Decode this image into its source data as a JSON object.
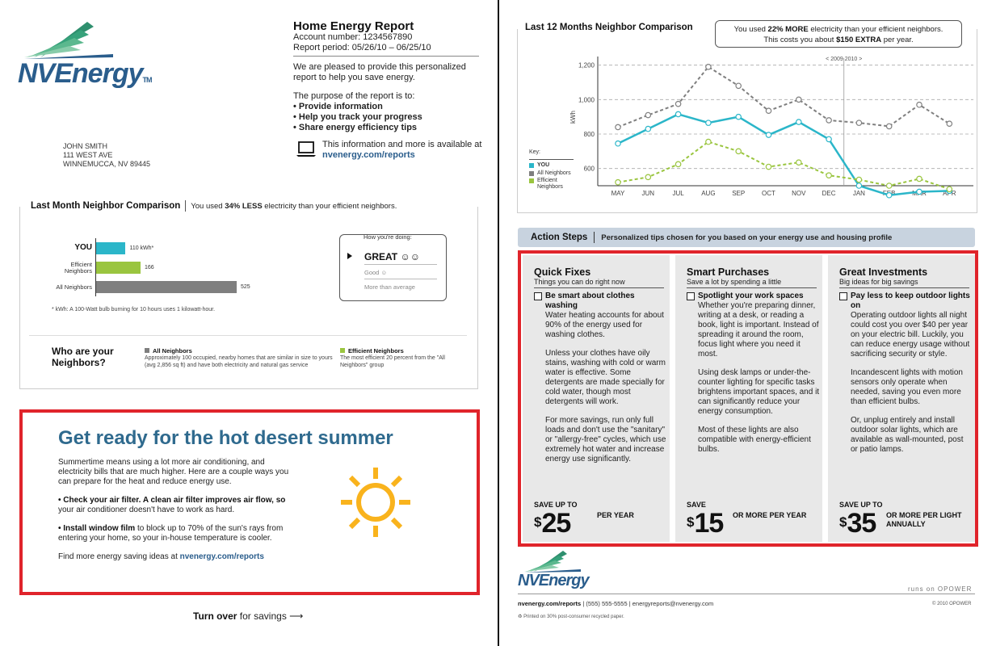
{
  "brand": {
    "logo_text": "NVEnergy",
    "tm": "TM",
    "colors": {
      "teal": "#2bb6c9",
      "gray": "#7f7f7f",
      "green": "#9ac53f",
      "blue": "#2f6a8e",
      "red": "#e0242b",
      "sun": "#f9b31d"
    }
  },
  "report": {
    "title": "Home Energy Report",
    "account": "Account number: 1234567890",
    "period": "Report period: 05/26/10 – 06/25/10",
    "intro_p1": "We are pleased to provide this personalized report to help you save energy.",
    "intro_p2": "The purpose of the report is to:",
    "purposes": [
      "Provide information",
      "Help you track your progress",
      "Share energy efficiency tips"
    ],
    "info_text": "This information and more is available at",
    "info_link": "nvenergy.com/reports",
    "laptop_icon": "laptop-icon"
  },
  "address": {
    "name": "JOHN SMITH",
    "street": "111 WEST AVE",
    "city": "WINNEMUCCA, NV 89445"
  },
  "last_month": {
    "title": "Last Month Neighbor Comparison",
    "subtitle_pre": "You used ",
    "subtitle_bold": "34% LESS",
    "subtitle_post": " electricity than your efficient neighbors.",
    "rows": [
      {
        "label": "YOU",
        "value_label": "110 kWh*"
      },
      {
        "label": "Efficient Neighbors",
        "value_label": "166"
      },
      {
        "label": "All Neighbors",
        "value_label": "525"
      }
    ],
    "footnote": "* kWh: A 100-Watt bulb burning for 10 hours uses 1 kilowatt-hour.",
    "doing_head": "How you're doing:",
    "great": "GREAT",
    "good": "Good",
    "more": "More than average"
  },
  "chart_data": [
    {
      "type": "bar",
      "categories": [
        "YOU",
        "Efficient Neighbors",
        "All Neighbors"
      ],
      "values": [
        110,
        166,
        525
      ],
      "colors": [
        "#2bb6c9",
        "#9ac53f",
        "#7f7f7f"
      ]
    },
    {
      "type": "line",
      "categories": [
        "MAY",
        "JUN",
        "JUL",
        "AUG",
        "SEP",
        "OCT",
        "NOV",
        "DEC",
        "JAN",
        "FEB",
        "MAR",
        "APR"
      ],
      "year_divider": "< 2009 2010 >",
      "ylabel": "kWh",
      "yticks": [
        "600",
        "800",
        "1,000",
        "1,200"
      ],
      "ylim": [
        500,
        1250
      ],
      "series": [
        {
          "name": "All Neighbors",
          "color": "#7f7f7f",
          "style": "dashed",
          "values": [
            840,
            910,
            975,
            1190,
            1080,
            935,
            1000,
            880,
            865,
            845,
            970,
            860
          ]
        },
        {
          "name": "YOU",
          "color": "#2bb6c9",
          "style": "solid",
          "values": [
            745,
            830,
            915,
            865,
            900,
            795,
            870,
            770,
            500,
            445,
            465,
            470
          ]
        },
        {
          "name": "Efficient Neighbors",
          "color": "#9ac53f",
          "style": "dashed",
          "values": [
            520,
            550,
            625,
            755,
            700,
            610,
            635,
            560,
            535,
            500,
            540,
            480
          ]
        }
      ]
    }
  ],
  "who": {
    "title_line1": "Who are your",
    "title_line2": "Neighbors?",
    "all_head": "All Neighbors",
    "all_text": "Approximately 100 occupied, nearby homes that are similar in size to yours (avg 2,856 sq ft) and have both electricity and natural gas service",
    "eff_head": "Efficient Neighbors",
    "eff_text": "The most efficient 20 percent from the \"All Neighbors\" group"
  },
  "summer": {
    "title": "Get ready for the hot desert summer",
    "p1": "Summertime means using a lot more air conditioning, and electricity bills that are much higher. Here are a couple ways you can prepare for the heat and reduce energy use.",
    "tip1_bold": "• Check your air filter. A clean air filter improves air flow, so",
    "tip1_rest": "your air conditioner doesn't have to work as hard.",
    "tip2_bold": "• Install window film",
    "tip2_rest": " to block up to 70% of the sun's rays from entering your home, so your in-house temperature is cooler.",
    "more_pre": "Find more energy saving ideas at ",
    "more_link": "nvenergy.com/reports",
    "sun_icon": "sun-icon"
  },
  "turnover": {
    "bold": "Turn over",
    "rest": " for savings"
  },
  "comparison12": {
    "title": "Last 12 Months Neighbor Comparison",
    "note_pre": "You used ",
    "note_bold": "22% MORE",
    "note_post": " electricity than your efficient neighbors.",
    "note2_pre": "This costs you about ",
    "note2_bold": "$150 EXTRA",
    "note2_post": " per year.",
    "key_title": "Key:",
    "key_you": "YOU",
    "key_all": "All Neighbors",
    "key_eff": "Efficient Neighbors"
  },
  "action": {
    "title": "Action Steps",
    "subtitle": "Personalized tips chosen for you based on your energy use and housing profile",
    "columns": [
      {
        "title": "Quick Fixes",
        "sub": "Things you can do right now",
        "check": "Be smart about clothes washing",
        "paras": [
          "Water heating accounts for about 90% of the energy used for washing clothes.",
          "Unless your clothes have oily stains, washing with cold or warm water is effective. Some detergents are made specially for cold water, though most detergents will work.",
          "For more savings, run only full loads and don't use the \"sanitary\" or \"allergy-free\" cycles, which use extremely hot water and increase energy use significantly."
        ],
        "save_label": "SAVE UP TO",
        "dollar": "$",
        "amount": "25",
        "per": "PER YEAR"
      },
      {
        "title": "Smart Purchases",
        "sub": "Save a lot by spending a little",
        "check": "Spotlight your work spaces",
        "paras": [
          "Whether you're preparing dinner, writing at a desk, or reading a book, light is important. Instead of spreading it around the room, focus light where you need it most.",
          "Using desk lamps or under-the-counter lighting for specific tasks brightens important spaces, and it can significantly reduce your energy consumption.",
          "Most of these lights are also compatible with energy-efficient bulbs."
        ],
        "save_label": "SAVE",
        "dollar": "$",
        "amount": "15",
        "per": "OR MORE PER YEAR"
      },
      {
        "title": "Great Investments",
        "sub": "Big ideas for big savings",
        "check": "Pay less to keep outdoor lights on",
        "paras": [
          "Operating outdoor lights all night could cost you over $40 per year on your electric bill. Luckily, you can reduce energy usage without sacrificing security or style.",
          "Incandescent lights with motion sensors only operate when needed, saving you even more than efficient bulbs.",
          "Or, unplug entirely and install outdoor solar lights, which are available as wall-mounted, post or patio lamps."
        ],
        "save_label": "SAVE UP TO",
        "dollar": "$",
        "amount": "35",
        "per": "OR MORE PER LIGHT ANNUALLY"
      }
    ]
  },
  "footer": {
    "logo_text": "NVEnergy",
    "opower": "runs on OPOWER",
    "link_bold": "nvenergy.com/reports",
    "link_rest": " | (555) 555-5555 | energyreports@nvenergy.com",
    "copyright": "© 2010 OPOWER",
    "printed": "Printed on 30% post-consumer recycled paper.",
    "recycle_icon": "recycle-icon"
  }
}
